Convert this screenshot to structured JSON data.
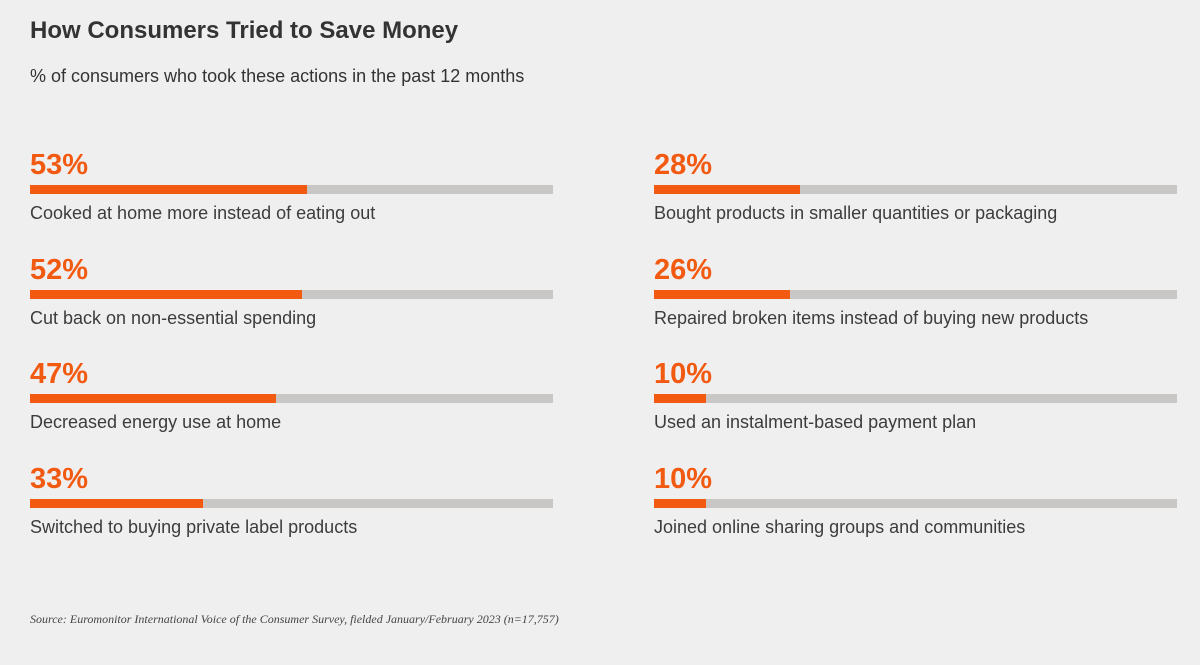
{
  "chart_data": {
    "type": "bar",
    "title": "How Consumers Tried to Save Money",
    "subtitle": "% of consumers who took these actions in the past 12 months",
    "value_suffix": "%",
    "ylim": [
      0,
      100
    ],
    "colors": {
      "fill": "#f25a12",
      "track": "#c8c7c5"
    },
    "items": [
      {
        "value": 53,
        "label": "Cooked at home more instead of eating out"
      },
      {
        "value": 52,
        "label": "Cut back on non-essential spending"
      },
      {
        "value": 47,
        "label": "Decreased energy use at home"
      },
      {
        "value": 33,
        "label": "Switched to buying private label products"
      },
      {
        "value": 28,
        "label": "Bought products in smaller quantities or packaging"
      },
      {
        "value": 26,
        "label": "Repaired broken items instead of buying new products"
      },
      {
        "value": 10,
        "label": "Used an instalment-based payment plan"
      },
      {
        "value": 10,
        "label": "Joined online sharing groups and communities"
      }
    ],
    "source": "Source: Euromonitor International Voice of the Consumer Survey, fielded January/February 2023 (n=17,757)"
  }
}
